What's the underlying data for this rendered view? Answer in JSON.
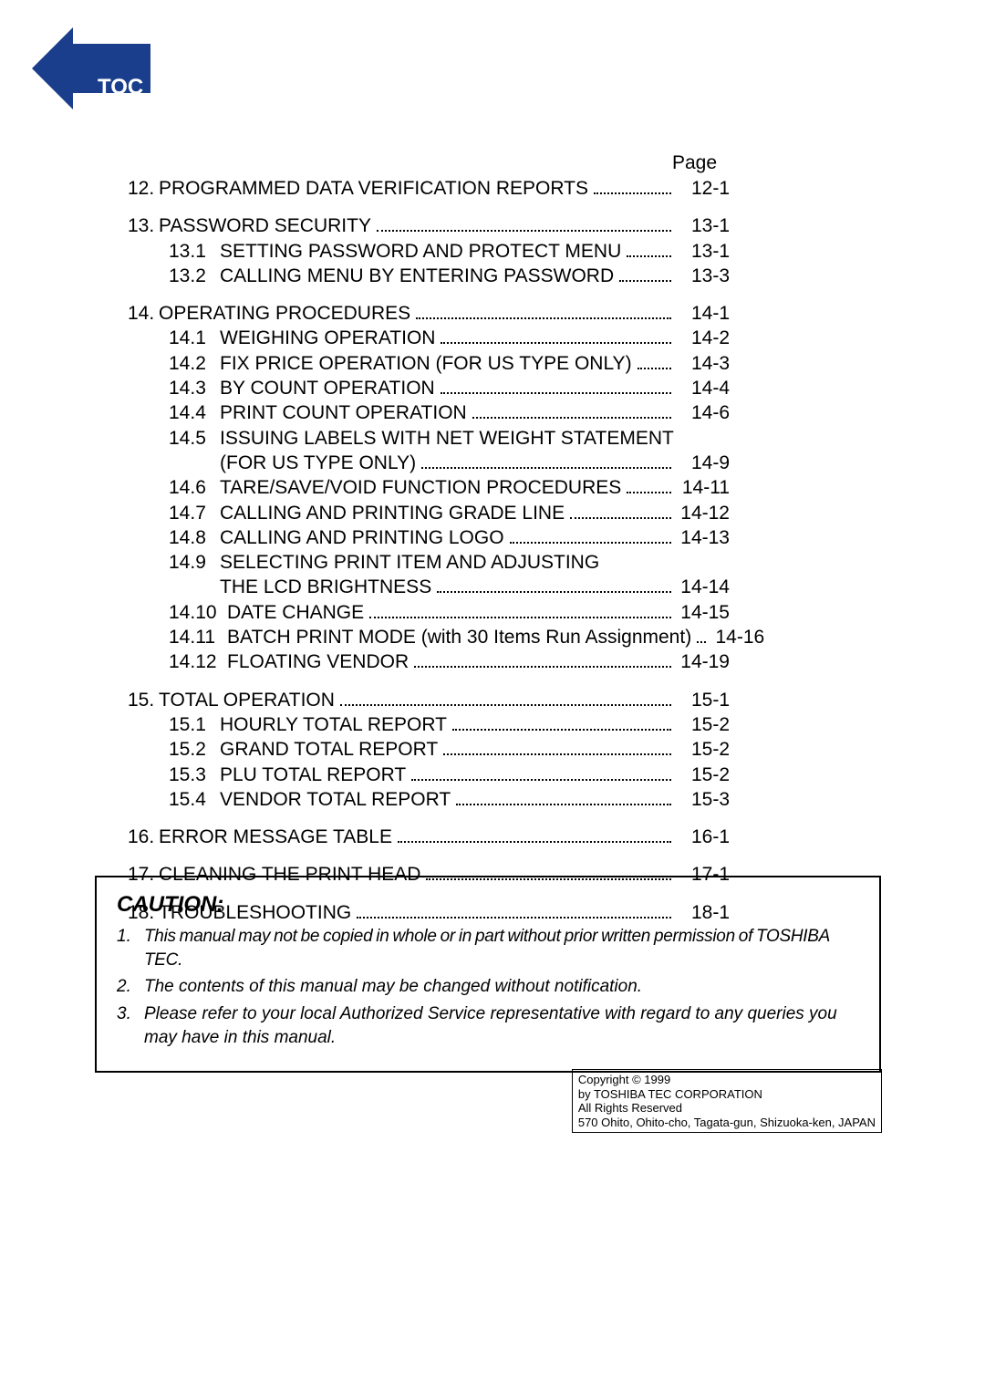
{
  "badge": {
    "label": "TOC 1",
    "fill_color": "#1a3e8c",
    "text_color": "#ffffff"
  },
  "page_header": "Page",
  "toc": {
    "groups": [
      {
        "items": [
          {
            "type": "main",
            "num": "12.",
            "title": "PROGRAMMED DATA VERIFICATION REPORTS",
            "page": "12-1"
          }
        ]
      },
      {
        "items": [
          {
            "type": "main",
            "num": "13.",
            "title": "PASSWORD SECURITY",
            "page": "13-1"
          },
          {
            "type": "sub",
            "num": "13.1",
            "title": "SETTING PASSWORD AND PROTECT MENU",
            "page": "13-1"
          },
          {
            "type": "sub",
            "num": "13.2",
            "title": "CALLING MENU BY ENTERING PASSWORD",
            "page": "13-3"
          }
        ]
      },
      {
        "items": [
          {
            "type": "main",
            "num": "14.",
            "title": "OPERATING PROCEDURES",
            "page": "14-1"
          },
          {
            "type": "sub",
            "num": "14.1",
            "title": "WEIGHING OPERATION",
            "page": "14-2"
          },
          {
            "type": "sub",
            "num": "14.2",
            "title": "FIX PRICE OPERATION (FOR US TYPE ONLY)",
            "page": "14-3"
          },
          {
            "type": "sub",
            "num": "14.3",
            "title": "BY COUNT OPERATION",
            "page": "14-4"
          },
          {
            "type": "sub",
            "num": "14.4",
            "title": "PRINT COUNT OPERATION",
            "page": "14-6"
          },
          {
            "type": "sub",
            "num": "14.5",
            "title": "ISSUING LABELS WITH NET WEIGHT STATEMENT",
            "nopage": true
          },
          {
            "type": "cont",
            "title": "(FOR US TYPE ONLY)",
            "page": "14-9"
          },
          {
            "type": "sub",
            "num": "14.6",
            "title": "TARE/SAVE/VOID FUNCTION PROCEDURES",
            "page": "14-11"
          },
          {
            "type": "sub",
            "num": "14.7",
            "title": "CALLING AND PRINTING GRADE LINE",
            "page": "14-12"
          },
          {
            "type": "sub",
            "num": "14.8",
            "title": "CALLING AND PRINTING LOGO",
            "page": "14-13"
          },
          {
            "type": "sub",
            "num": "14.9",
            "title": "SELECTING PRINT ITEM AND ADJUSTING",
            "nopage": true
          },
          {
            "type": "cont",
            "title": "THE LCD BRIGHTNESS",
            "page": "14-14"
          },
          {
            "type": "sub",
            "num": "14.10",
            "wide": true,
            "title": "DATE CHANGE",
            "page": "14-15"
          },
          {
            "type": "sub",
            "num": "14.11",
            "wide": true,
            "title": "BATCH PRINT MODE (with 30 Items Run Assignment)",
            "page": "14-16"
          },
          {
            "type": "sub",
            "num": "14.12",
            "wide": true,
            "title": "FLOATING VENDOR",
            "page": "14-19"
          }
        ]
      },
      {
        "items": [
          {
            "type": "main",
            "num": "15.",
            "title": "TOTAL OPERATION",
            "page": "15-1"
          },
          {
            "type": "sub",
            "num": "15.1",
            "title": "HOURLY TOTAL REPORT",
            "page": "15-2"
          },
          {
            "type": "sub",
            "num": "15.2",
            "title": "GRAND TOTAL REPORT",
            "page": "15-2"
          },
          {
            "type": "sub",
            "num": "15.3",
            "title": "PLU TOTAL REPORT",
            "page": "15-2"
          },
          {
            "type": "sub",
            "num": "15.4",
            "title": "VENDOR TOTAL REPORT",
            "page": "15-3"
          }
        ]
      },
      {
        "items": [
          {
            "type": "main",
            "num": "16.",
            "title": "ERROR MESSAGE TABLE",
            "page": "16-1"
          }
        ]
      },
      {
        "items": [
          {
            "type": "main",
            "num": "17.",
            "title": "CLEANING THE PRINT HEAD",
            "page": "17-1"
          }
        ]
      },
      {
        "items": [
          {
            "type": "main",
            "num": "18.",
            "title": "TROUBLESHOOTING",
            "page": "18-1"
          }
        ]
      }
    ]
  },
  "caution": {
    "heading": "CAUTION:",
    "items": [
      {
        "n": "1.",
        "text": "This manual may not be copied in whole or in part without prior written permission of TOSHIBA TEC."
      },
      {
        "n": "2.",
        "text": "The contents of this manual may be changed without notification."
      },
      {
        "n": "3.",
        "text": "Please refer to your local Authorized Service representative with regard to any queries you may have in this manual."
      }
    ]
  },
  "copyright": {
    "line1": "Copyright © 1999",
    "line2": "by TOSHIBA TEC CORPORATION",
    "line3": "All Rights Reserved",
    "line4": "570 Ohito, Ohito-cho, Tagata-gun, Shizuoka-ken, JAPAN"
  }
}
